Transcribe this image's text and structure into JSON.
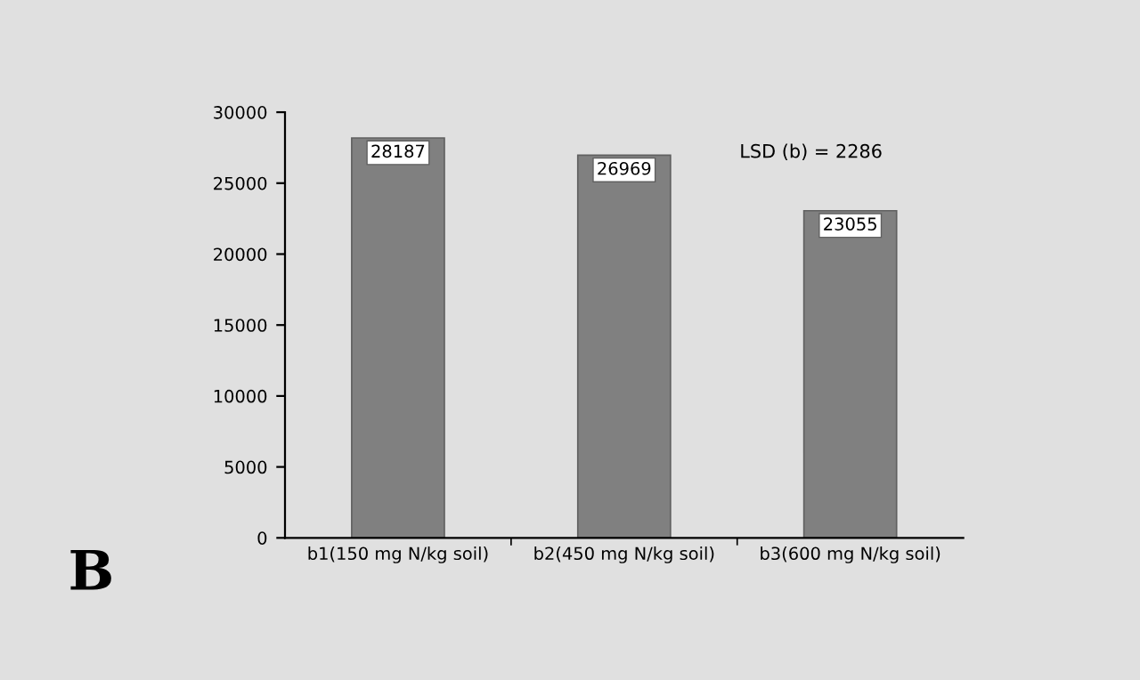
{
  "chart_data": {
    "type": "bar",
    "categories": [
      "b1(150 mg N/kg soil)",
      "b2(450 mg N/kg soil)",
      "b3(600 mg N/kg soil)"
    ],
    "values": [
      28187,
      26969,
      23055
    ],
    "color": "#808080",
    "ylim": [
      0,
      30000
    ],
    "yticks": [
      0,
      5000,
      10000,
      15000,
      20000,
      25000,
      30000
    ],
    "data_labels": true,
    "grid": false,
    "legend": false,
    "annotations": [
      "LSD (b) = 2286",
      "B"
    ]
  }
}
